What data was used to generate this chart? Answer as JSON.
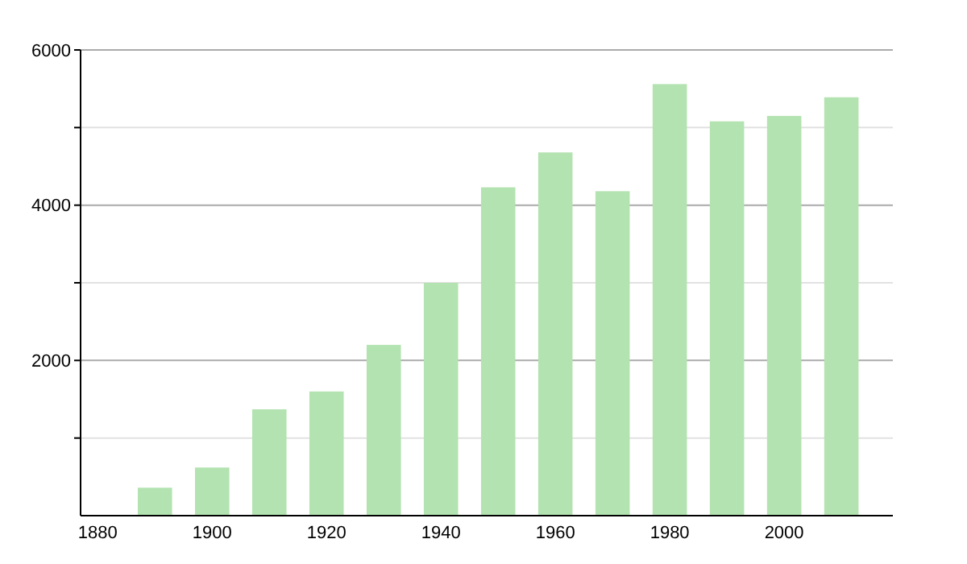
{
  "chart_data": {
    "type": "bar",
    "x": [
      1890,
      1900,
      1910,
      1920,
      1930,
      1940,
      1950,
      1960,
      1970,
      1980,
      1990,
      2000,
      2010
    ],
    "values": [
      360,
      620,
      1370,
      1600,
      2200,
      3000,
      4230,
      4680,
      4180,
      5560,
      5080,
      5150,
      5390
    ],
    "color": "#b3e3b0",
    "xlim": [
      1877,
      2019
    ],
    "xticks": [
      1880,
      1900,
      1920,
      1940,
      1960,
      1980,
      2000
    ],
    "ylim": [
      0,
      6000
    ],
    "yticks": [
      {
        "value": 1000,
        "label": null
      },
      2000,
      {
        "value": 3000,
        "label": null
      },
      4000,
      {
        "value": 5000,
        "label": null
      },
      6000
    ],
    "grid": "y"
  }
}
